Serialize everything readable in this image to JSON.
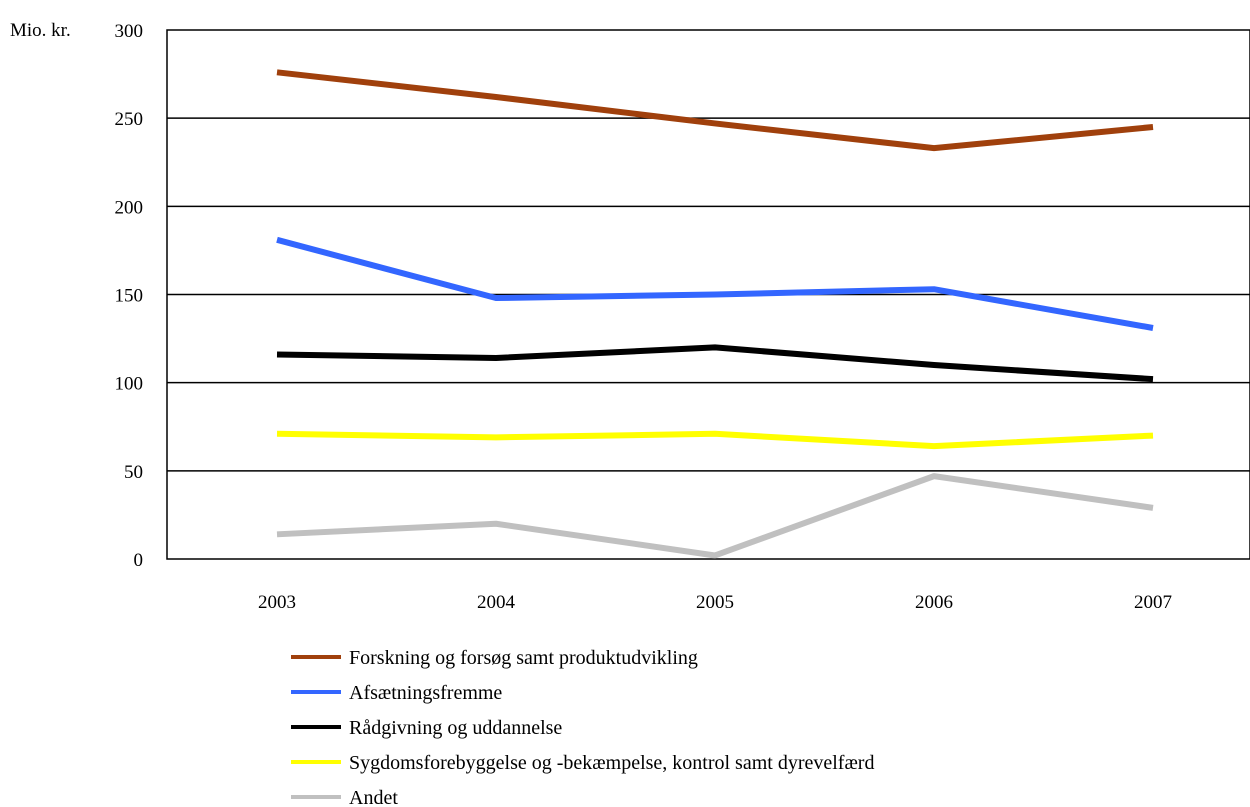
{
  "chart_data": {
    "type": "line",
    "ylabel": "Mio. kr.",
    "xlabel": "",
    "title": "",
    "ylim": [
      0,
      300
    ],
    "yticks": [
      0,
      50,
      100,
      150,
      200,
      250,
      300
    ],
    "x": [
      "2003",
      "2004",
      "2005",
      "2006",
      "2007"
    ],
    "grid": "horizontal",
    "legend_position": "bottom",
    "series": [
      {
        "name": "Forskning og forsøg samt produktudvikling",
        "color": "#a0400c",
        "values": [
          276,
          262,
          247,
          233,
          245
        ]
      },
      {
        "name": "Afsætningsfremme",
        "color": "#3366ff",
        "values": [
          181,
          148,
          150,
          153,
          131
        ]
      },
      {
        "name": "Rådgivning og uddannelse",
        "color": "#000000",
        "values": [
          116,
          114,
          120,
          110,
          102
        ]
      },
      {
        "name": "Sygdomsforebyggelse og -bekæmpelse, kontrol samt dyrevelfærd",
        "color": "#ffff00",
        "values": [
          71,
          69,
          71,
          64,
          70
        ]
      },
      {
        "name": "Andet",
        "color": "#c0c0c0",
        "values": [
          14,
          20,
          2,
          47,
          29
        ]
      }
    ]
  }
}
